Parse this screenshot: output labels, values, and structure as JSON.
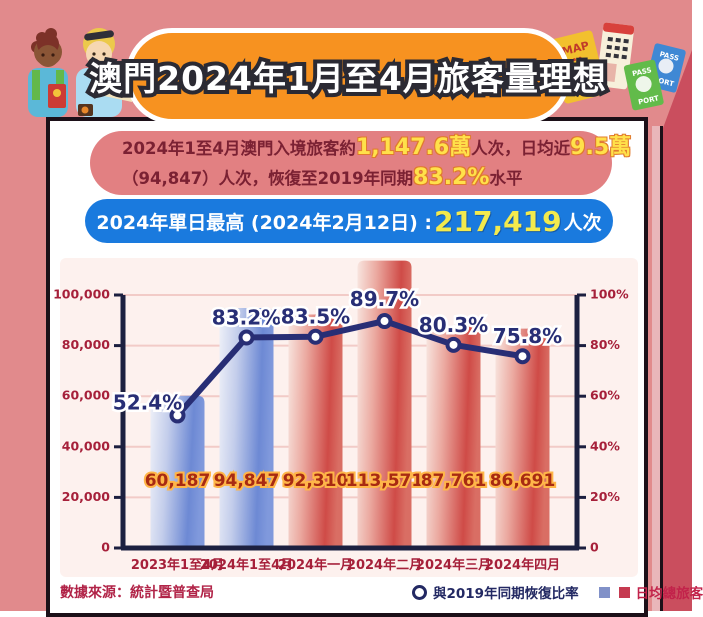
{
  "page": {
    "bg": "#e18a8c",
    "accent_bg": "#ca4e5e",
    "panel_border": "#1c1018"
  },
  "header": {
    "title": "澳門2024年1月至4月旅客量理想"
  },
  "decorations": {
    "map_label": "MAP",
    "passport_blue_line1": "PASS",
    "passport_blue_line2": "PORT",
    "passport_green_line1": "PASS",
    "passport_green_line2": "PORT"
  },
  "summary": {
    "line1": [
      {
        "t": "2024年1至4月澳門入境旅客約",
        "hl": false
      },
      {
        "t": "1,147.6萬",
        "hl": true
      },
      {
        "t": "人次，日均近",
        "hl": false
      },
      {
        "t": "9.5萬",
        "hl": true
      }
    ],
    "line2": [
      {
        "t": "（94,847）人次，恢復至2019年同期",
        "hl": false
      },
      {
        "t": "83.2%",
        "hl": true
      },
      {
        "t": "水平",
        "hl": false
      }
    ]
  },
  "record": {
    "prefix": "2024年單日最高 (2024年2月12日) : ",
    "number": "217,419",
    "suffix": "人次"
  },
  "chart_data": {
    "type": "bar+line",
    "categories": [
      "2023年1至4月",
      "2024年1至4月",
      "2024年一月",
      "2024年二月",
      "2024年三月",
      "2024年四月"
    ],
    "series": [
      {
        "name": "日均總旅客",
        "type": "bar",
        "values": [
          60187,
          94847,
          92310,
          113571,
          87761,
          86691
        ],
        "labels": [
          "60,187",
          "94,847",
          "92,310",
          "113,571",
          "87,761",
          "86,691"
        ],
        "bar_colors": [
          "blue",
          "blue",
          "red",
          "red",
          "red",
          "red"
        ]
      },
      {
        "name": "與2019年同期恢復比率",
        "type": "line",
        "values": [
          52.4,
          83.2,
          83.5,
          89.7,
          80.3,
          75.8
        ],
        "labels": [
          "52.4%",
          "83.2%",
          "83.5%",
          "89.7%",
          "80.3%",
          "75.8%"
        ]
      }
    ],
    "left_axis": {
      "min": 0,
      "max": 100000,
      "step": 20000,
      "ticks": [
        "0",
        "20,000",
        "40,000",
        "60,000",
        "80,000",
        "100,000"
      ]
    },
    "right_axis": {
      "min": 0,
      "max": 100,
      "step": 20,
      "ticks": [
        "0",
        "20%",
        "40%",
        "60%",
        "80%",
        "100%"
      ]
    },
    "grid": true,
    "legend_position": "bottom-right",
    "colors": {
      "bar_blue": "#6d89d4",
      "bar_red": "#cf4b47",
      "line": "#282e75",
      "axis": "#1c2040",
      "grid": "#f2cbc7",
      "tick_label": "#a6203a",
      "bar_value_fill": "#a82a12",
      "bar_value_stroke": "#ffb649"
    }
  },
  "footer": {
    "source": "數據來源：統計暨普查局",
    "legend_line": "與2019年同期恢復比率",
    "legend_bar": "日均總旅客"
  }
}
